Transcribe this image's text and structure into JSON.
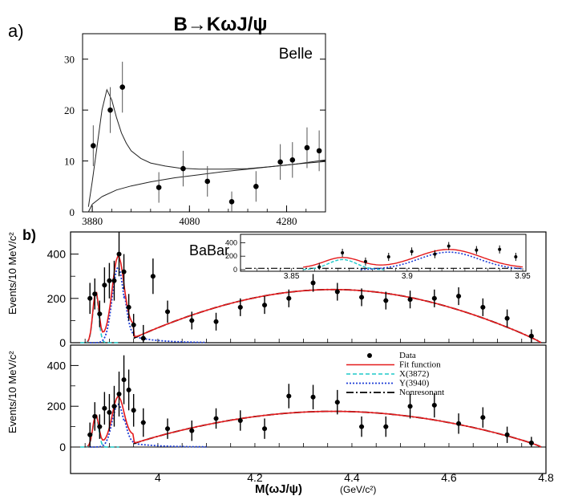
{
  "figure": {
    "title": "B→KωJ/ψ",
    "panel_a_label": "a)",
    "panel_b_label": "b)"
  },
  "chart_data": [
    {
      "type": "scatter",
      "panel": "a",
      "experiment_label": "Belle",
      "xlim": [
        3860,
        4360
      ],
      "ylim": [
        0,
        35
      ],
      "xticks": [
        3880,
        4080,
        4280
      ],
      "yticks": [
        0,
        10,
        20,
        30
      ],
      "points": [
        {
          "x": 3882,
          "y": 13,
          "err": 4
        },
        {
          "x": 3917,
          "y": 20,
          "err": 4.5
        },
        {
          "x": 3942,
          "y": 24.5,
          "err": 5
        },
        {
          "x": 4017,
          "y": 4.8,
          "err": 3
        },
        {
          "x": 4067,
          "y": 8.5,
          "err": 3.5
        },
        {
          "x": 4117,
          "y": 6.0,
          "err": 3
        },
        {
          "x": 4167,
          "y": 2.0,
          "err": 2
        },
        {
          "x": 4217,
          "y": 5.0,
          "err": 3
        },
        {
          "x": 4267,
          "y": 9.8,
          "err": 3.5
        },
        {
          "x": 4292,
          "y": 10.2,
          "err": 3.5
        },
        {
          "x": 4322,
          "y": 12.6,
          "err": 4
        },
        {
          "x": 4347,
          "y": 12.0,
          "err": 4
        }
      ],
      "curves": [
        {
          "name": "fit",
          "x": [
            3872,
            3880,
            3890,
            3900,
            3910,
            3920,
            3930,
            3940,
            3950,
            3960,
            3980,
            4000,
            4030,
            4060,
            4100,
            4150,
            4200,
            4250,
            4300,
            4360
          ],
          "y": [
            1,
            6,
            13,
            20,
            24,
            22,
            18.5,
            15.5,
            13.5,
            12,
            10.5,
            9.6,
            9.0,
            8.6,
            8.4,
            8.4,
            8.5,
            8.9,
            9.4,
            10.2
          ]
        },
        {
          "name": "background",
          "x": [
            3872,
            3880,
            3900,
            3930,
            3960,
            4000,
            4050,
            4100,
            4150,
            4200,
            4250,
            4300,
            4360
          ],
          "y": [
            0,
            1.5,
            3.0,
            4.3,
            5.1,
            5.9,
            6.7,
            7.3,
            7.9,
            8.4,
            8.9,
            9.4,
            9.9
          ]
        }
      ]
    },
    {
      "type": "scatter",
      "panel": "b-top",
      "experiment_label": "BaBar",
      "ylabel": "Events/10 MeV/c²",
      "xlim": [
        3.82,
        4.8
      ],
      "ylim": [
        0,
        500
      ],
      "yticks": [
        0,
        200,
        400
      ],
      "points": [
        {
          "x": 3.86,
          "y": 200,
          "err": 70
        },
        {
          "x": 3.87,
          "y": 220,
          "err": 70
        },
        {
          "x": 3.88,
          "y": 130,
          "err": 60
        },
        {
          "x": 3.89,
          "y": 260,
          "err": 80
        },
        {
          "x": 3.9,
          "y": 280,
          "err": 80
        },
        {
          "x": 3.91,
          "y": 280,
          "err": 90
        },
        {
          "x": 3.92,
          "y": 400,
          "err": 100
        },
        {
          "x": 3.93,
          "y": 320,
          "err": 80
        },
        {
          "x": 3.94,
          "y": 160,
          "err": 60
        },
        {
          "x": 3.95,
          "y": 80,
          "err": 50
        },
        {
          "x": 3.97,
          "y": 20,
          "err": 60
        },
        {
          "x": 3.99,
          "y": 300,
          "err": 80
        },
        {
          "x": 4.02,
          "y": 140,
          "err": 50
        },
        {
          "x": 4.07,
          "y": 100,
          "err": 40
        },
        {
          "x": 4.12,
          "y": 95,
          "err": 40
        },
        {
          "x": 4.17,
          "y": 160,
          "err": 40
        },
        {
          "x": 4.22,
          "y": 170,
          "err": 40
        },
        {
          "x": 4.27,
          "y": 200,
          "err": 40
        },
        {
          "x": 4.32,
          "y": 270,
          "err": 40
        },
        {
          "x": 4.37,
          "y": 230,
          "err": 40
        },
        {
          "x": 4.42,
          "y": 205,
          "err": 40
        },
        {
          "x": 4.47,
          "y": 190,
          "err": 40
        },
        {
          "x": 4.52,
          "y": 195,
          "err": 40
        },
        {
          "x": 4.57,
          "y": 200,
          "err": 40
        },
        {
          "x": 4.62,
          "y": 210,
          "err": 40
        },
        {
          "x": 4.67,
          "y": 160,
          "err": 40
        },
        {
          "x": 4.72,
          "y": 110,
          "err": 40
        },
        {
          "x": 4.77,
          "y": 30,
          "err": 30
        }
      ],
      "inset": {
        "xlim": [
          3.83,
          3.95
        ],
        "ylim": [
          0,
          500
        ],
        "xticks": [
          3.85,
          3.9,
          3.95
        ],
        "yticks": [
          0,
          200,
          400
        ]
      }
    },
    {
      "type": "scatter",
      "panel": "b-bottom",
      "ylabel": "Events/10 MeV/c²",
      "xlabel": "M(ωJ/ψ)",
      "xunit": "(GeV/c²)",
      "xlim": [
        3.82,
        4.8
      ],
      "ylim": [
        0,
        500
      ],
      "xticks": [
        4,
        4.2,
        4.4,
        4.6,
        4.8
      ],
      "yticks": [
        0,
        200,
        400
      ],
      "legend": [
        "Data",
        "Fit function",
        "X(3872)",
        "Y(3940)",
        "Nonresonant"
      ],
      "legend_placement": "top-right",
      "points": [
        {
          "x": 3.86,
          "y": 60,
          "err": 60
        },
        {
          "x": 3.87,
          "y": 150,
          "err": 70
        },
        {
          "x": 3.88,
          "y": 100,
          "err": 60
        },
        {
          "x": 3.89,
          "y": 190,
          "err": 80
        },
        {
          "x": 3.9,
          "y": 170,
          "err": 90
        },
        {
          "x": 3.91,
          "y": 200,
          "err": 100
        },
        {
          "x": 3.92,
          "y": 260,
          "err": 110
        },
        {
          "x": 3.93,
          "y": 330,
          "err": 120
        },
        {
          "x": 3.94,
          "y": 280,
          "err": 100
        },
        {
          "x": 3.95,
          "y": 180,
          "err": 80
        },
        {
          "x": 3.97,
          "y": 120,
          "err": 70
        },
        {
          "x": 4.02,
          "y": 90,
          "err": 50
        },
        {
          "x": 4.07,
          "y": 80,
          "err": 50
        },
        {
          "x": 4.12,
          "y": 140,
          "err": 50
        },
        {
          "x": 4.17,
          "y": 130,
          "err": 50
        },
        {
          "x": 4.22,
          "y": 90,
          "err": 50
        },
        {
          "x": 4.27,
          "y": 250,
          "err": 60
        },
        {
          "x": 4.32,
          "y": 245,
          "err": 60
        },
        {
          "x": 4.37,
          "y": 220,
          "err": 60
        },
        {
          "x": 4.42,
          "y": 100,
          "err": 50
        },
        {
          "x": 4.47,
          "y": 100,
          "err": 50
        },
        {
          "x": 4.52,
          "y": 200,
          "err": 60
        },
        {
          "x": 4.57,
          "y": 205,
          "err": 60
        },
        {
          "x": 4.62,
          "y": 115,
          "err": 50
        },
        {
          "x": 4.67,
          "y": 145,
          "err": 50
        },
        {
          "x": 4.72,
          "y": 60,
          "err": 40
        },
        {
          "x": 4.77,
          "y": 20,
          "err": 30
        }
      ]
    }
  ],
  "colors": {
    "data": "#000000",
    "fit": "#e41a1c",
    "x3872": "#1ec8c8",
    "y3940": "#1f3fd6",
    "nonresonant": "#000000"
  }
}
